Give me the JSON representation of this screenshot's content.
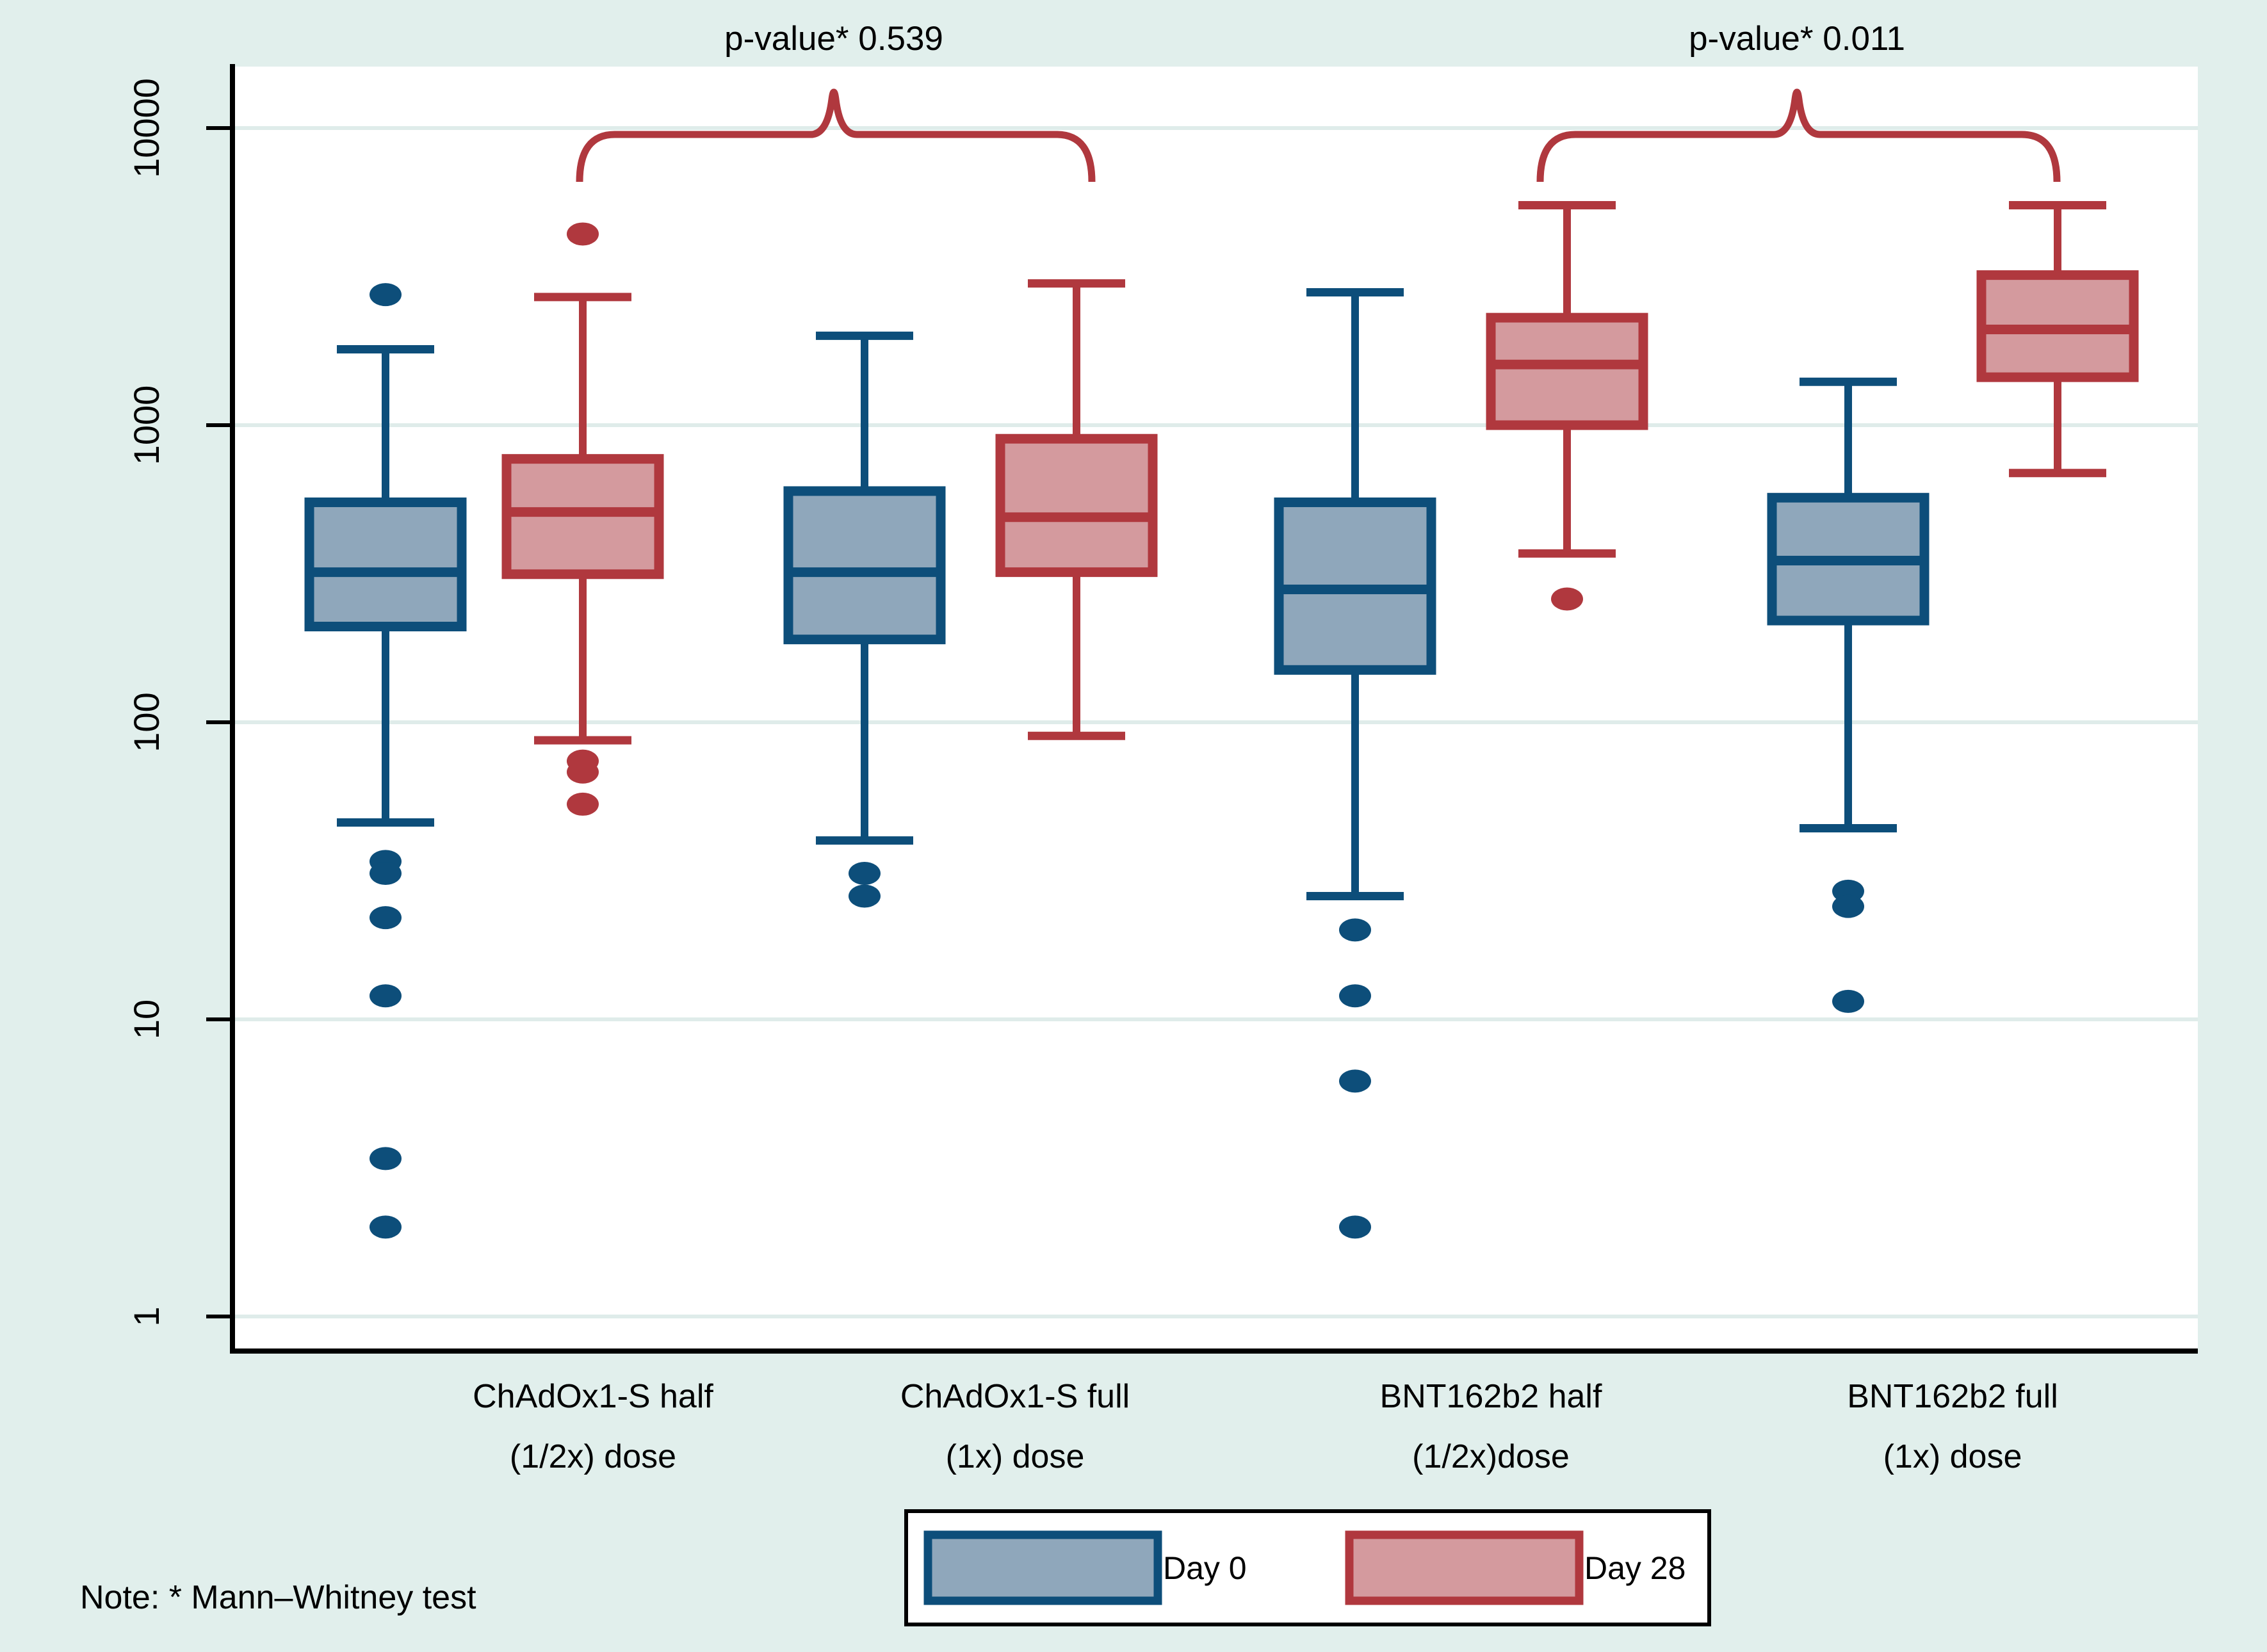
{
  "figure": {
    "background_color": "#e1efec",
    "plot_background": "#ffffff",
    "grid_color": "#dfecea",
    "axis_color": "#000000",
    "text_color": "#000000",
    "note": "Note: * Mann–Whitney test"
  },
  "chart_data": {
    "type": "boxplot",
    "y_scale": "log10",
    "ylim": [
      0.76,
      16000
    ],
    "grid": true,
    "y_ticks": [
      {
        "label": "10000",
        "value": 10000
      },
      {
        "label": "1000",
        "value": 1000
      },
      {
        "label": "100",
        "value": 100
      },
      {
        "label": "10",
        "value": 10
      },
      {
        "label": "1",
        "value": 1
      }
    ],
    "series": [
      {
        "name": "Day 0",
        "box_border": "#0d4e7a",
        "box_fill": "#8fa7bb"
      },
      {
        "name": "Day 28",
        "box_border": "#b0383e",
        "box_fill": "#d49a9e"
      }
    ],
    "groups": [
      {
        "label_line1": "ChAdOx1-S half",
        "label_line2": "(1/2x) dose",
        "day0": {
          "whisker_low": 46,
          "q1": 210,
          "median": 320,
          "q3": 550,
          "whisker_high": 1800,
          "outliers_high": [
            2750
          ],
          "outliers_low": [
            34,
            31,
            22,
            12,
            3.4,
            2.0
          ]
        },
        "day28": {
          "whisker_low": 87,
          "q1": 315,
          "median": 510,
          "q3": 770,
          "whisker_high": 2700,
          "outliers_high": [
            4400
          ],
          "outliers_low": [
            74,
            68,
            53
          ]
        }
      },
      {
        "label_line1": "ChAdOx1-S full",
        "label_line2": "(1x) dose",
        "day0": {
          "whisker_low": 40,
          "q1": 190,
          "median": 320,
          "q3": 600,
          "whisker_high": 2000,
          "outliers_high": [],
          "outliers_low": [
            31,
            26
          ]
        },
        "day28": {
          "whisker_low": 90,
          "q1": 320,
          "median": 490,
          "q3": 900,
          "whisker_high": 3000,
          "outliers_high": [],
          "outliers_low": []
        }
      },
      {
        "label_line1": "BNT162b2 half",
        "label_line2": "(1/2x)dose",
        "day0": {
          "whisker_low": 26,
          "q1": 150,
          "median": 280,
          "q3": 550,
          "whisker_high": 2800,
          "outliers_high": [],
          "outliers_low": [
            20,
            12,
            6.2,
            2.0
          ]
        },
        "day28": {
          "whisker_low": 370,
          "q1": 1000,
          "median": 1600,
          "q3": 2300,
          "whisker_high": 5500,
          "outliers_high": [],
          "outliers_low": [
            260
          ]
        }
      },
      {
        "label_line1": "BNT162b2 full",
        "label_line2": "(1x) dose",
        "day0": {
          "whisker_low": 44,
          "q1": 220,
          "median": 350,
          "q3": 570,
          "whisker_high": 1400,
          "outliers_high": [],
          "outliers_low": [
            27,
            24,
            11.5
          ]
        },
        "day28": {
          "whisker_low": 690,
          "q1": 1450,
          "median": 2100,
          "q3": 3200,
          "whisker_high": 5500,
          "outliers_high": [],
          "outliers_low": []
        }
      }
    ],
    "comparisons": [
      {
        "label": "p-value* 0.539",
        "p_value": 0.539,
        "between": [
          "ChAdOx1-S half Day 28",
          "ChAdOx1-S full Day 28"
        ]
      },
      {
        "label": "p-value* 0.011",
        "p_value": 0.011,
        "between": [
          "BNT162b2 half Day 28",
          "BNT162b2 full Day 28"
        ]
      }
    ],
    "legend_position": "bottom-center"
  }
}
